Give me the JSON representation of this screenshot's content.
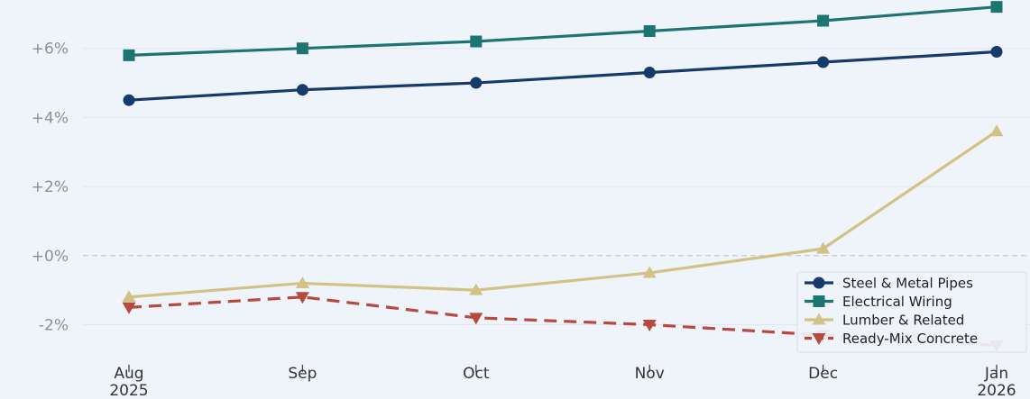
{
  "chart_data": {
    "type": "line",
    "categories": [
      "Aug\n2025",
      "Sep",
      "Oct",
      "Nov",
      "Dec",
      "Jan\n2026"
    ],
    "ylim": [
      -2.9,
      7.4
    ],
    "yticks": [
      -2,
      0,
      2,
      4,
      6
    ],
    "ytick_labels": [
      "-2%",
      "+0%",
      "+2%",
      "+4%",
      "+6%"
    ],
    "zero_line": true,
    "grid": "horizontal",
    "legend_position": "bottom-right",
    "series": [
      {
        "name": "Steel & Metal Pipes",
        "color": "#163a6b",
        "marker": "circle",
        "dashed": false,
        "values": [
          4.5,
          4.8,
          5.0,
          5.3,
          5.6,
          5.9
        ]
      },
      {
        "name": "Electrical Wiring",
        "color": "#1c7570",
        "marker": "square",
        "dashed": false,
        "values": [
          5.8,
          6.0,
          6.2,
          6.5,
          6.8,
          7.2
        ]
      },
      {
        "name": "Lumber & Related",
        "color": "#d2c285",
        "marker": "triangle-up",
        "dashed": false,
        "values": [
          -1.2,
          -0.8,
          -1.0,
          -0.5,
          0.2,
          3.6
        ]
      },
      {
        "name": "Ready-Mix Concrete",
        "color": "#b74a3e",
        "marker": "triangle-down",
        "dashed": true,
        "values": [
          -1.5,
          -1.2,
          -1.8,
          -2.0,
          -2.3,
          -2.6
        ]
      }
    ]
  }
}
